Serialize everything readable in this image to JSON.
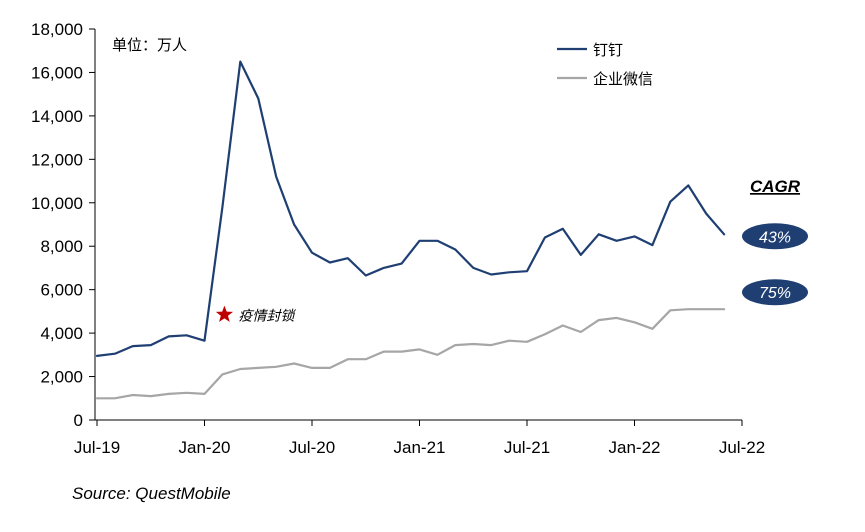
{
  "chart_data": {
    "type": "line",
    "unit_note": "单位：万人",
    "x_tick_labels": [
      "Jul-19",
      "Jan-20",
      "Jul-20",
      "Jan-21",
      "Jul-21",
      "Jan-22",
      "Jul-22"
    ],
    "y_tick_labels": [
      "0",
      "2,000",
      "4,000",
      "6,000",
      "8,000",
      "10,000",
      "12,000",
      "14,000",
      "16,000",
      "18,000"
    ],
    "ylim": [
      0,
      18000
    ],
    "x_index_range": [
      0,
      36
    ],
    "series": [
      {
        "name": "钉钉",
        "color": "#1f3f73",
        "x": [
          0,
          1,
          2,
          3,
          4,
          5,
          6,
          7,
          8,
          9,
          10,
          11,
          12,
          13,
          14,
          15,
          16,
          17,
          18,
          19,
          20,
          21,
          22,
          23,
          24,
          25,
          26,
          27,
          28,
          29,
          30,
          31,
          32,
          33,
          34,
          35
        ],
        "values": [
          2950,
          3050,
          3400,
          3450,
          3850,
          3900,
          3650,
          9800,
          16500,
          14800,
          11200,
          9000,
          7700,
          7250,
          7450,
          6650,
          7000,
          7200,
          8250,
          8250,
          7850,
          7000,
          6700,
          6800,
          6850,
          8400,
          8800,
          7600,
          8550,
          8250,
          8450,
          8050,
          10050,
          10800,
          9500,
          8550
        ]
      },
      {
        "name": "企业微信",
        "color": "#a6a6a6",
        "x": [
          0,
          1,
          2,
          3,
          4,
          5,
          6,
          7,
          8,
          9,
          10,
          11,
          12,
          13,
          14,
          15,
          16,
          17,
          18,
          19,
          20,
          21,
          22,
          23,
          24,
          25,
          26,
          27,
          28,
          29,
          30,
          31,
          32,
          33,
          34,
          35
        ],
        "values": [
          1000,
          1000,
          1150,
          1100,
          1200,
          1250,
          1200,
          2100,
          2350,
          2400,
          2450,
          2600,
          2400,
          2400,
          2800,
          2800,
          3150,
          3150,
          3250,
          3000,
          3450,
          3500,
          3450,
          3650,
          3600,
          3950,
          4350,
          4050,
          4600,
          4700,
          4500,
          4200,
          5050,
          5100,
          5100,
          5100
        ]
      }
    ],
    "annotation": {
      "label": "疫情封锁",
      "x": 7,
      "y": 4850,
      "marker_color": "#c00000"
    },
    "cagr": {
      "title": "CAGR",
      "badge_color": "#1f3f73",
      "items": [
        {
          "label": "43%",
          "series": "钉钉"
        },
        {
          "label": "75%",
          "series": "企业微信"
        }
      ]
    },
    "legend_position": "top-right",
    "grid": false
  },
  "source": "Source: QuestMobile"
}
